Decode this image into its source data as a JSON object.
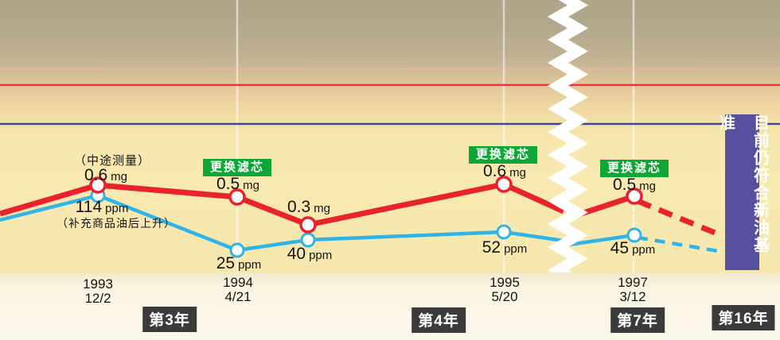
{
  "colors": {
    "red": "#e8232e",
    "cyan": "#2fb3e8",
    "green": "#0ea636",
    "dark_badge": "#3b3b3b",
    "purple": "#57509e",
    "ref_red": "#ea3340",
    "ref_blue": "#3c4a96",
    "ref_faint": "rgba(242,180,172,0.5)",
    "guide_white": "rgba(255,255,255,0.55)"
  },
  "labels": {
    "filter_change": "更换滤芯",
    "midway_note": "（中途测量）",
    "rise_note": "（补充商品油后上升）"
  },
  "points": {
    "mg": [
      {
        "v": "0.6",
        "u": "mg"
      },
      {
        "v": "0.5",
        "u": "mg"
      },
      {
        "v": "0.3",
        "u": "mg"
      },
      {
        "v": "0.6",
        "u": "mg"
      },
      {
        "v": "0.5",
        "u": "mg"
      }
    ],
    "ppm": [
      {
        "v": "114",
        "u": "ppm"
      },
      {
        "v": "25",
        "u": "ppm"
      },
      {
        "v": "40",
        "u": "ppm"
      },
      {
        "v": "52",
        "u": "ppm"
      },
      {
        "v": "45",
        "u": "ppm"
      }
    ]
  },
  "x_axis": [
    {
      "year": "1993",
      "date": "12/2"
    },
    {
      "year": "1994",
      "date": "4/21"
    },
    {
      "year": "1995",
      "date": "5/20"
    },
    {
      "year": "1997",
      "date": "3/12"
    }
  ],
  "year_badges": [
    {
      "label": "第3年"
    },
    {
      "label": "第4年"
    },
    {
      "label": "第7年"
    },
    {
      "label": "第16年"
    }
  ],
  "banner": {
    "text": "目前仍符合新油基准"
  },
  "chart_data": {
    "type": "line",
    "title": "",
    "x_tick_labels": [
      "1993 12/2",
      "1994 4/21",
      "",
      "1995 5/20",
      "1997 3/12"
    ],
    "series": [
      {
        "name": "mg",
        "unit": "mg",
        "color": "#e8232e",
        "values": [
          0.6,
          0.5,
          0.3,
          0.6,
          0.5
        ],
        "extension": "dashed declining line toward 第16年"
      },
      {
        "name": "ppm",
        "unit": "ppm",
        "color": "#2fb3e8",
        "values": [
          114,
          25,
          40,
          52,
          45
        ],
        "extension": "dashed declining line toward 第16年"
      }
    ],
    "annotations": [
      {
        "text": "（中途测量）",
        "point_index": 0,
        "series": "mg"
      },
      {
        "text": "（补充商品油后上升）",
        "point_index": 0,
        "series": "ppm"
      },
      {
        "text": "更换滤芯",
        "point_index": 1
      },
      {
        "text": "更换滤芯",
        "point_index": 3
      },
      {
        "text": "更换滤芯",
        "point_index": 4
      }
    ],
    "reference_lines": [
      {
        "color": "#ea3340",
        "role": "upper limit (mg)"
      },
      {
        "color": "#3c4a96",
        "role": "upper limit (ppm)"
      }
    ],
    "axis_break": true,
    "year_badges": [
      "第3年",
      "第4年",
      "第7年",
      "第16年"
    ],
    "banner_note": "目前仍符合新油基准",
    "legend_position": "none",
    "grid": false
  }
}
